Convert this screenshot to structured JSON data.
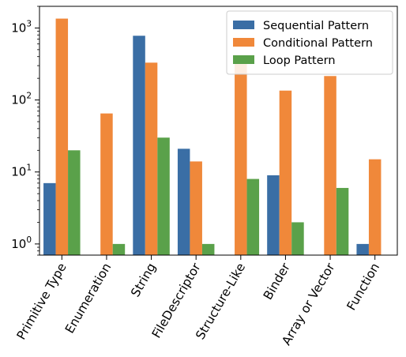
{
  "chart_data": {
    "type": "bar",
    "scale": "log",
    "ylim": [
      0.7,
      2000
    ],
    "grid": false,
    "legend_position": "top-right",
    "categories": [
      "Primitive Type",
      "Enumeration",
      "String",
      "FileDescriptor",
      "Structure-Like",
      "Binder",
      "Array or Vector",
      "Function"
    ],
    "series": [
      {
        "name": "Sequential Pattern",
        "color": "#3a6ea5",
        "values": [
          7,
          null,
          780,
          21,
          null,
          9,
          null,
          1
        ]
      },
      {
        "name": "Conditional Pattern",
        "color": "#f0883a",
        "values": [
          1350,
          65,
          330,
          14,
          340,
          135,
          215,
          15
        ]
      },
      {
        "name": "Loop Pattern",
        "color": "#5aa14a",
        "values": [
          20,
          1,
          30,
          1,
          8,
          2,
          6,
          null
        ]
      }
    ],
    "y_ticks": [
      {
        "value": 1,
        "base": "10",
        "exp": "0"
      },
      {
        "value": 10,
        "base": "10",
        "exp": "1"
      },
      {
        "value": 100,
        "base": "10",
        "exp": "2"
      },
      {
        "value": 1000,
        "base": "10",
        "exp": "3"
      }
    ]
  }
}
